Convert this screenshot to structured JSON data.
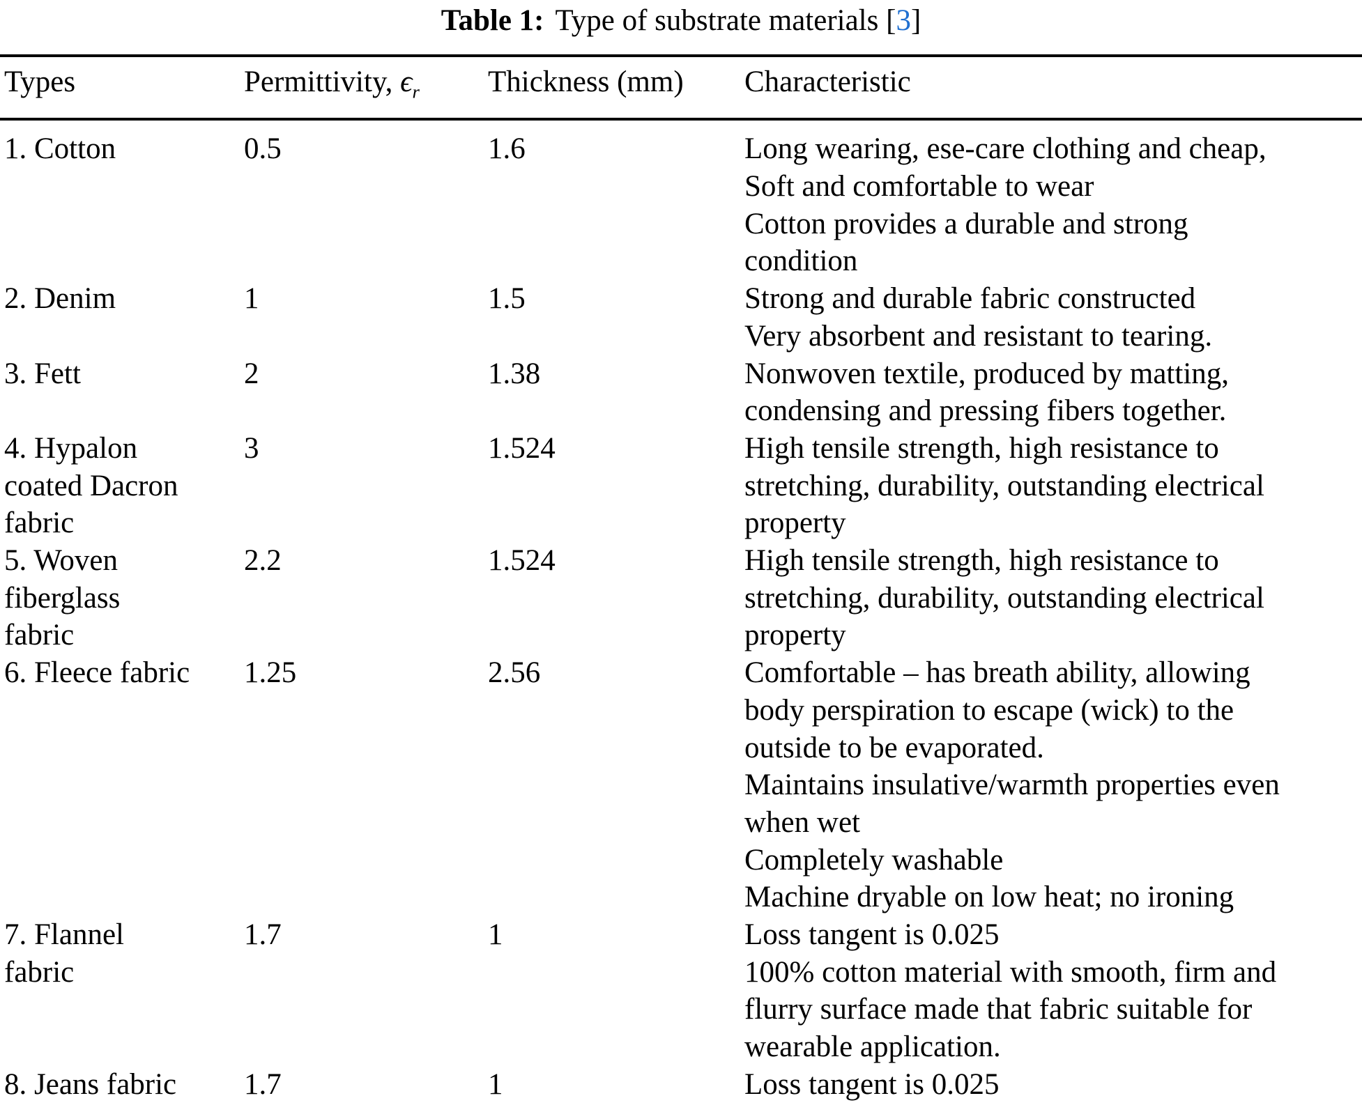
{
  "title": {
    "label": "Table 1:",
    "text": "Type of substrate materials",
    "citation_open": "[",
    "citation": "3",
    "citation_close": "]"
  },
  "colors": {
    "citation_blue": "#1f6fd0",
    "text": "#000000",
    "background": "#ffffff",
    "rule": "#000000"
  },
  "table": {
    "columns": [
      {
        "label": "Types"
      },
      {
        "label": "Permittivity,",
        "symbol": "ϵ",
        "symbol_sub": "r"
      },
      {
        "label": "Thickness (mm)"
      },
      {
        "label": "Characteristic"
      }
    ],
    "rows": [
      {
        "type_lines": [
          "1. Cotton"
        ],
        "permittivity": "0.5",
        "thickness": "1.6",
        "characteristic_lines": [
          "Long wearing, ese-care clothing and cheap,",
          "Soft and comfortable to wear",
          "Cotton provides a durable and strong",
          "condition"
        ]
      },
      {
        "type_lines": [
          "2. Denim"
        ],
        "permittivity": "1",
        "thickness": "1.5",
        "characteristic_lines": [
          "Strong and durable fabric constructed",
          "Very absorbent and resistant to tearing."
        ]
      },
      {
        "type_lines": [
          "3. Fett"
        ],
        "permittivity": "2",
        "thickness": "1.38",
        "characteristic_lines": [
          "Nonwoven textile, produced by matting,",
          "condensing and pressing fibers together."
        ]
      },
      {
        "type_lines": [
          "4. Hypalon",
          "coated Dacron",
          "fabric"
        ],
        "permittivity": "3",
        "thickness": "1.524",
        "characteristic_lines": [
          "High tensile strength, high resistance to",
          "stretching, durability, outstanding electrical",
          "property"
        ]
      },
      {
        "type_lines": [
          "5. Woven",
          "fiberglass",
          "fabric"
        ],
        "permittivity": "2.2",
        "thickness": "1.524",
        "characteristic_lines": [
          "High tensile strength, high resistance to",
          "stretching, durability, outstanding electrical",
          "property"
        ]
      },
      {
        "type_lines": [
          "6. Fleece fabric"
        ],
        "permittivity": "1.25",
        "thickness": "2.56",
        "characteristic_lines": [
          "Comfortable – has breath ability, allowing",
          "body perspiration to escape (wick) to the",
          "outside to be evaporated.",
          "Maintains insulative/warmth properties even",
          "when wet",
          "Completely washable",
          "Machine dryable on low heat; no ironing"
        ]
      },
      {
        "type_lines": [
          "7. Flannel",
          "fabric"
        ],
        "permittivity": "1.7",
        "thickness": "1",
        "characteristic_lines": [
          "Loss tangent is 0.025",
          "100% cotton material with smooth, firm and",
          "flurry surface made that fabric suitable for",
          "wearable application."
        ]
      },
      {
        "type_lines": [
          "8. Jeans fabric"
        ],
        "permittivity": "1.7",
        "thickness": "1",
        "characteristic_lines": [
          "Loss tangent is 0.025"
        ]
      }
    ]
  }
}
